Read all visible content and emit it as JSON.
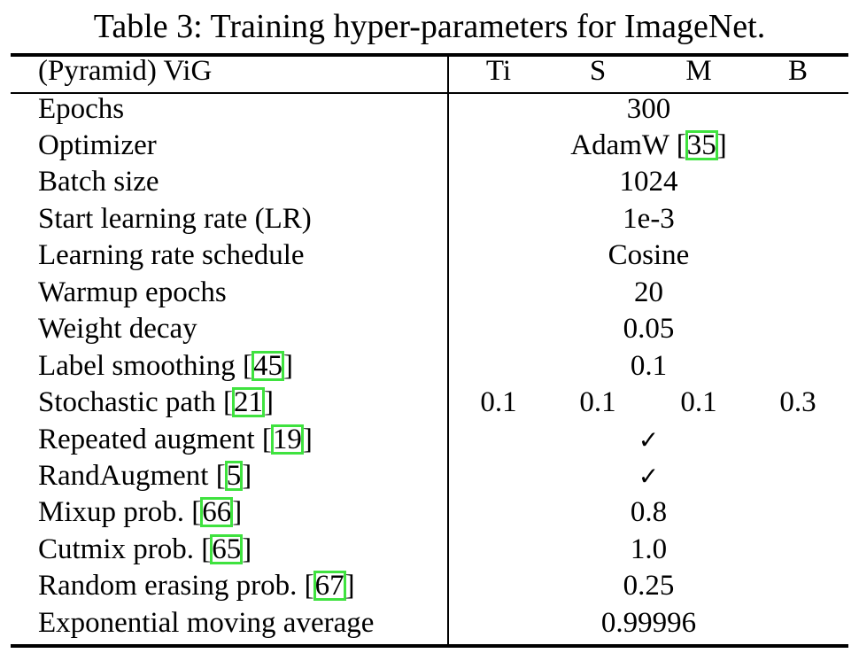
{
  "caption": "Table 3: Training hyper-parameters for ImageNet.",
  "header": {
    "label": "(Pyramid) ViG",
    "columns": [
      "Ti",
      "S",
      "M",
      "B"
    ]
  },
  "rows": [
    {
      "pre": "Epochs",
      "cite": "",
      "post": "",
      "value": "300"
    },
    {
      "pre": "Optimizer",
      "cite": "",
      "post": "",
      "value_pre": "AdamW [",
      "value_cite": "35",
      "value_post": "]"
    },
    {
      "pre": "Batch size",
      "cite": "",
      "post": "",
      "value": "1024"
    },
    {
      "pre": "Start learning rate (LR)",
      "cite": "",
      "post": "",
      "value": "1e-3"
    },
    {
      "pre": "Learning rate schedule",
      "cite": "",
      "post": "",
      "value": "Cosine"
    },
    {
      "pre": "Warmup epochs",
      "cite": "",
      "post": "",
      "value": "20"
    },
    {
      "pre": "Weight decay",
      "cite": "",
      "post": "",
      "value": "0.05"
    },
    {
      "pre": "Label smoothing [",
      "cite": "45",
      "post": "]",
      "value": "0.1"
    },
    {
      "pre": "Stochastic path [",
      "cite": "21",
      "post": "]",
      "values": [
        "0.1",
        "0.1",
        "0.1",
        "0.3"
      ]
    },
    {
      "pre": "Repeated augment [",
      "cite": "19",
      "post": "]",
      "value": "✓"
    },
    {
      "pre": "RandAugment [",
      "cite": "5",
      "post": "]",
      "value": "✓"
    },
    {
      "pre": "Mixup prob. [",
      "cite": "66",
      "post": "]",
      "value": "0.8"
    },
    {
      "pre": "Cutmix prob. [",
      "cite": "65",
      "post": "]",
      "value": "1.0"
    },
    {
      "pre": "Random erasing prob. [",
      "cite": "67",
      "post": "]",
      "value": "0.25"
    },
    {
      "pre": "Exponential moving average",
      "cite": "",
      "post": "",
      "value": "0.99996"
    }
  ]
}
